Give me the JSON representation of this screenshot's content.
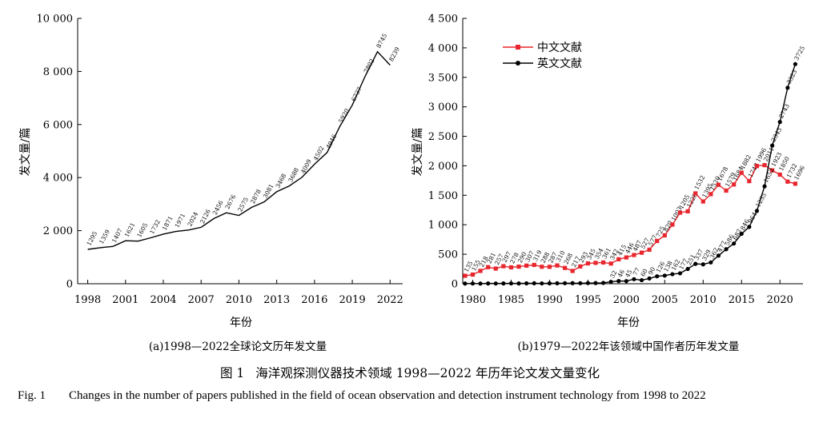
{
  "chart_data": [
    {
      "type": "line",
      "caption": "(a)1998—2022全球论文历年发文量",
      "xlabel": "年份",
      "ylabel": "发文量/篇",
      "xlim": [
        1997.2,
        2023
      ],
      "ylim": [
        0,
        10000
      ],
      "x_ticks": [
        1998,
        2001,
        2004,
        2007,
        2010,
        2013,
        2016,
        2019,
        2022
      ],
      "x_tick_labels": [
        "1998",
        "2001",
        "2004",
        "2007",
        "2010",
        "2013",
        "2016",
        "2019",
        "2022"
      ],
      "y_ticks": [
        0,
        2000,
        4000,
        6000,
        8000,
        10000
      ],
      "y_tick_labels": [
        "0",
        "2 000",
        "4 000",
        "6 000",
        "8 000",
        "10 000"
      ],
      "x": [
        1998,
        1999,
        2000,
        2001,
        2002,
        2003,
        2004,
        2005,
        2006,
        2007,
        2008,
        2009,
        2010,
        2011,
        2012,
        2013,
        2014,
        2015,
        2016,
        2017,
        2018,
        2019,
        2020,
        2021,
        2022
      ],
      "series": [
        {
          "name": "全球论文",
          "color": "#000000",
          "values": [
            1295,
            1359,
            1407,
            1621,
            1605,
            1732,
            1871,
            1971,
            2024,
            2126,
            2456,
            2676,
            2575,
            2878,
            3081,
            3468,
            3688,
            4009,
            4502,
            4946,
            5920,
            6737,
            7802,
            8745,
            8239
          ]
        }
      ]
    },
    {
      "type": "line",
      "caption": "(b)1979—2022年该领域中国作者历年发文量",
      "xlabel": "年份",
      "ylabel": "发文量/篇",
      "xlim": [
        1978.7,
        2023
      ],
      "ylim": [
        0,
        4500
      ],
      "x_ticks": [
        1980,
        1985,
        1990,
        1995,
        2000,
        2005,
        2010,
        2015,
        2020
      ],
      "x_tick_labels": [
        "1980",
        "1985",
        "1990",
        "1995",
        "2000",
        "2005",
        "2010",
        "2015",
        "2020"
      ],
      "y_ticks": [
        0,
        500,
        1000,
        1500,
        2000,
        2500,
        3000,
        3500,
        4000,
        4500
      ],
      "y_tick_labels": [
        "0",
        "500",
        "1 000",
        "1 500",
        "2 000",
        "2 500",
        "3 000",
        "3 500",
        "4 000",
        "4 500"
      ],
      "legend_position": "top-left",
      "x": [
        1979,
        1980,
        1981,
        1982,
        1983,
        1984,
        1985,
        1986,
        1987,
        1988,
        1989,
        1990,
        1991,
        1992,
        1993,
        1994,
        1995,
        1996,
        1997,
        1998,
        1999,
        2000,
        2001,
        2002,
        2003,
        2004,
        2005,
        2006,
        2007,
        2008,
        2009,
        2010,
        2011,
        2012,
        2013,
        2014,
        2015,
        2016,
        2017,
        2018,
        2019,
        2020,
        2021,
        2022
      ],
      "series": [
        {
          "name": "中文文献",
          "color": "#e8262d",
          "marker": "square",
          "values": [
            135,
            155,
            218,
            281,
            257,
            297,
            278,
            290,
            307,
            319,
            288,
            287,
            310,
            268,
            217,
            293,
            345,
            354,
            361,
            342,
            415,
            446,
            487,
            527,
            577,
            725,
            820,
            1003,
            1205,
            1228,
            1532,
            1395,
            1520,
            1678,
            1579,
            1684,
            1882,
            1740,
            1996,
            2011,
            1923,
            1850,
            1732,
            1696
          ]
        },
        {
          "name": "英文文献",
          "color": "#000000",
          "marker": "circle",
          "values": [
            3,
            4,
            3,
            5,
            4,
            5,
            6,
            5,
            7,
            8,
            6,
            7,
            8,
            9,
            10,
            9,
            11,
            12,
            14,
            32,
            46,
            45,
            77,
            60,
            90,
            126,
            138,
            162,
            177,
            251,
            337,
            329,
            362,
            477,
            586,
            682,
            846,
            964,
            1235,
            1652,
            2343,
            2743,
            3323,
            3725
          ]
        }
      ],
      "label_start_index": [
        0,
        19
      ]
    }
  ],
  "figure": {
    "title_number": "图 1",
    "title_text": "海洋观探测仪器技术领域 1998—2022 年历年论文发文量变化",
    "caption_label": "Fig. 1",
    "caption_text": "Changes in the number of papers published in the field of ocean observation and detection instrument technology from 1998 to 2022"
  }
}
